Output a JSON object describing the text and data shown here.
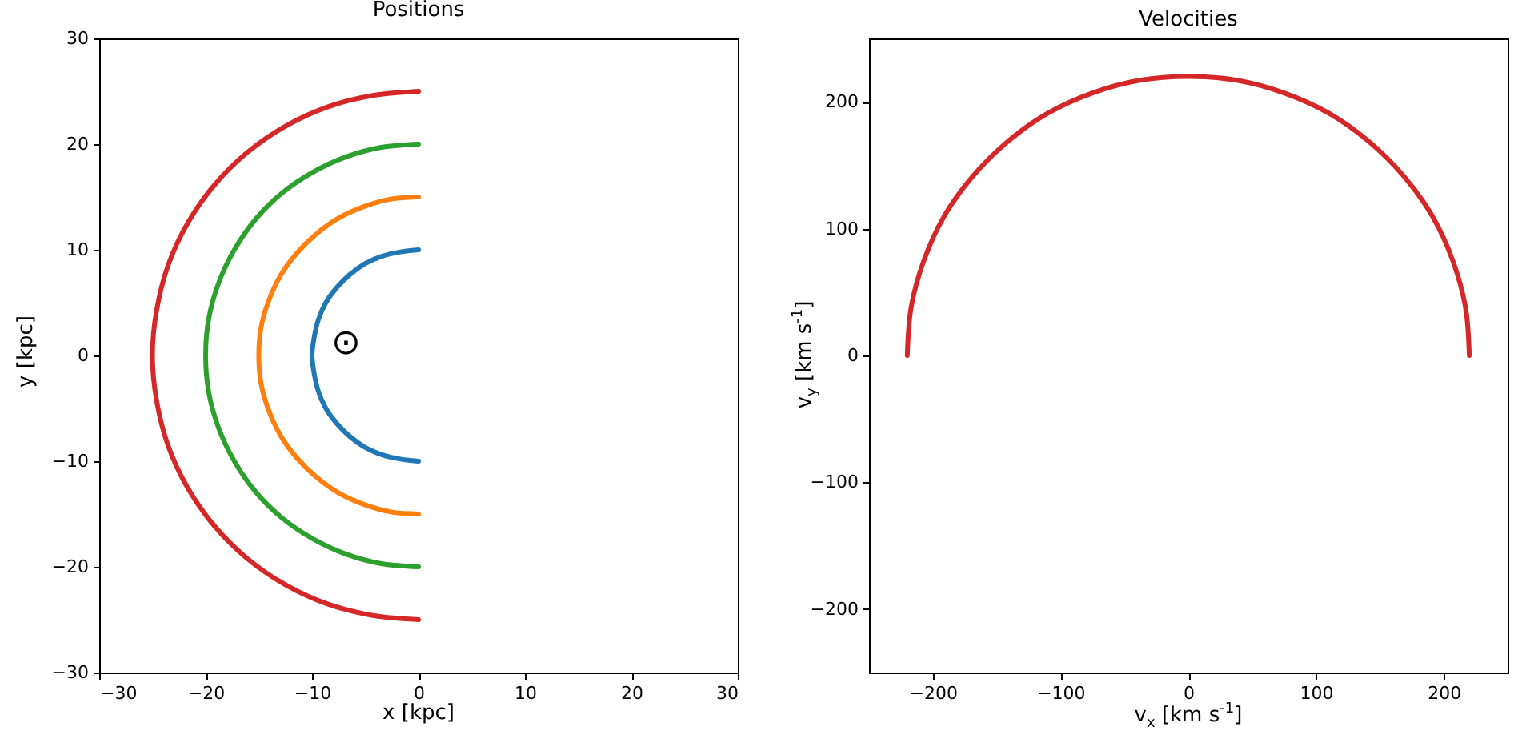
{
  "chart_data": [
    {
      "type": "line",
      "title": "Positions",
      "xlabel": "x [kpc]",
      "ylabel": "y [kpc]",
      "xlim": [
        -30,
        30
      ],
      "ylim": [
        -30,
        30
      ],
      "xticks": [
        -30,
        -20,
        -10,
        0,
        10,
        20,
        30
      ],
      "yticks": [
        -30,
        -20,
        -10,
        0,
        10,
        20,
        30
      ],
      "series": [
        {
          "color": "#1f77b4",
          "x": [
            0,
            -1.7,
            -3.4,
            -5,
            -6.4,
            -7.7,
            -8.7,
            -9.4,
            -9.8,
            -10,
            -9.8,
            -9.4,
            -8.7,
            -7.7,
            -6.4,
            -5,
            -3.4,
            -1.7,
            0
          ],
          "values": [
            10,
            9.8,
            9.4,
            8.7,
            7.7,
            6.4,
            5,
            3.4,
            1.7,
            0,
            -1.7,
            -3.4,
            -5,
            -6.4,
            -7.7,
            -8.7,
            -9.4,
            -9.8,
            -10
          ]
        },
        {
          "color": "#ff7f0e",
          "x": [
            0,
            -2.6,
            -5.1,
            -7.5,
            -9.6,
            -11.5,
            -13,
            -14.1,
            -14.8,
            -15,
            -14.8,
            -14.1,
            -13,
            -11.5,
            -9.6,
            -7.5,
            -5.1,
            -2.6,
            0
          ],
          "values": [
            15,
            14.8,
            14.1,
            13,
            11.5,
            9.6,
            7.5,
            5.1,
            2.6,
            0,
            -2.6,
            -5.1,
            -7.5,
            -9.6,
            -11.5,
            -13,
            -14.1,
            -14.8,
            -15
          ]
        },
        {
          "color": "#2ca02c",
          "x": [
            0,
            -3.5,
            -6.8,
            -10,
            -12.9,
            -15.3,
            -17.3,
            -18.8,
            -19.7,
            -20,
            -19.7,
            -18.8,
            -17.3,
            -15.3,
            -12.9,
            -10,
            -6.8,
            -3.5,
            0
          ],
          "values": [
            20,
            19.7,
            18.8,
            17.3,
            15.3,
            12.9,
            10,
            6.8,
            3.5,
            0,
            -3.5,
            -6.8,
            -10,
            -12.9,
            -15.3,
            -17.3,
            -18.8,
            -19.7,
            -20
          ]
        },
        {
          "color": "#d62728",
          "x": [
            0,
            -4.3,
            -8.6,
            -12.5,
            -16.1,
            -19.2,
            -21.7,
            -23.5,
            -24.6,
            -25,
            -24.6,
            -23.5,
            -21.7,
            -19.2,
            -16.1,
            -12.5,
            -8.6,
            -4.3,
            0
          ],
          "values": [
            25,
            24.6,
            23.5,
            21.7,
            19.2,
            16.1,
            12.5,
            8.6,
            4.3,
            0,
            -4.3,
            -8.6,
            -12.5,
            -16.1,
            -19.2,
            -21.7,
            -23.5,
            -24.6,
            -25
          ]
        }
      ],
      "annotations": [
        "⊙"
      ]
    },
    {
      "type": "line",
      "title": "Velocities",
      "xlabel": "v$_{x}$ [km s$^{-1}$]",
      "ylabel": "v$_{y}$ [km s$^{-1}$]",
      "xlim": [
        -250,
        250
      ],
      "ylim": [
        -250,
        250
      ],
      "xticks": [
        -200,
        -100,
        0,
        100,
        200
      ],
      "yticks": [
        -200,
        -100,
        0,
        100,
        200
      ],
      "series": [
        {
          "color": "#d62728",
          "x": [
            -220,
            -217,
            -207,
            -191,
            -169,
            -141,
            -110,
            -75,
            -38,
            0,
            38,
            75,
            110,
            141,
            169,
            191,
            207,
            217,
            220
          ],
          "values": [
            0,
            38,
            75,
            110,
            141,
            169,
            191,
            207,
            217,
            220,
            217,
            207,
            191,
            169,
            141,
            110,
            75,
            38,
            0
          ]
        }
      ]
    }
  ]
}
